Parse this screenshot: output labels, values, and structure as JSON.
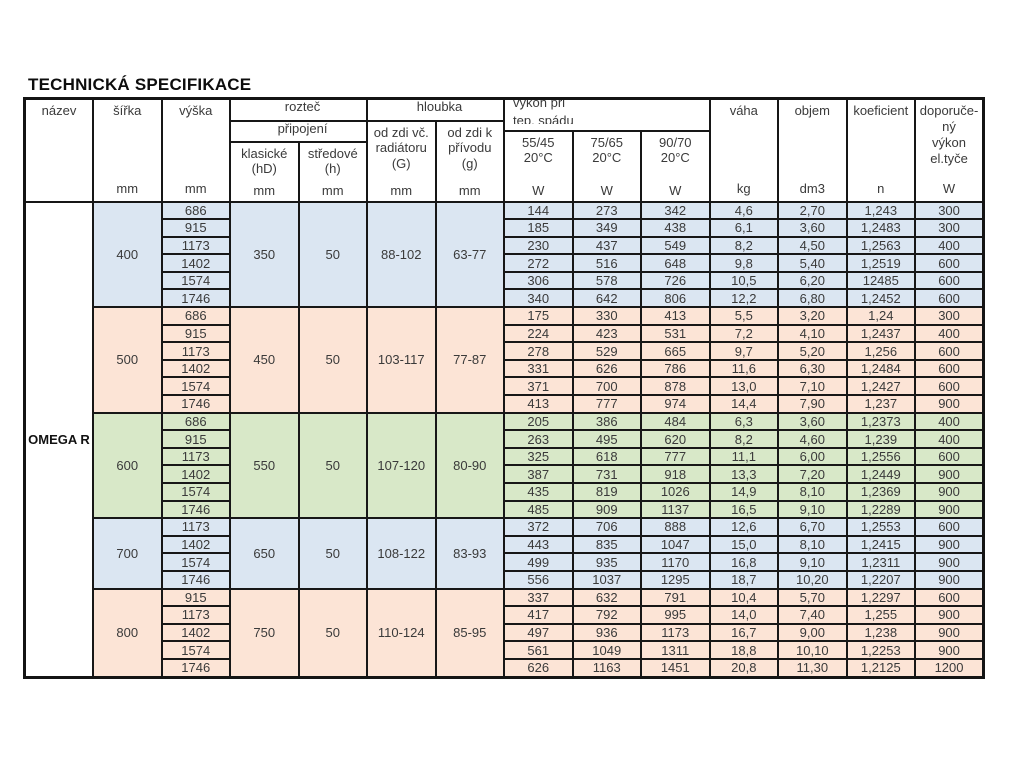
{
  "title": "TECHNICKÁ SPECIFIKACE",
  "product_name": "OMEGA R",
  "colors": {
    "group_blue": "#dbe6f2",
    "group_peach": "#fce4d6",
    "group_green": "#d8e8c8",
    "border": "#171717"
  },
  "header": {
    "nazev": "název",
    "sirka": "šířka",
    "vyska": "výška",
    "roztec": "rozteč",
    "pripojeni": "připojení",
    "klasicke": "klasické\n(hD)",
    "stredove": "středové\n(h)",
    "hloubka": "hloubka",
    "depth_wall": "od zdi vč.\nradiátoru\n(G)",
    "depth_supply": "od zdi k\npřívodu\n(g)",
    "vykon_line1": "výkon při",
    "vykon_line2": "tep. spádu",
    "temp_5545": "55/45\n20°C",
    "temp_7565": "75/65\n20°C",
    "temp_9070": "90/70\n20°C",
    "vaha": "váha",
    "objem": "objem",
    "koeficient": "koeficient",
    "doporuceny": "doporuče-\nný\nvýkon\nel.tyče",
    "unit_mm": "mm",
    "unit_w": "W",
    "unit_kg": "kg",
    "unit_dm3": "dm3",
    "unit_n": "n"
  },
  "groups": [
    {
      "color": "blue",
      "sirka": "400",
      "klasicke": "350",
      "stredove": "50",
      "depth_g": "88-102",
      "depth_p": "63-77",
      "rows": [
        {
          "vyska": "686",
          "p1": "144",
          "p2": "273",
          "p3": "342",
          "vaha": "4,6",
          "objem": "2,70",
          "koef": "1,243",
          "dop": "300"
        },
        {
          "vyska": "915",
          "p1": "185",
          "p2": "349",
          "p3": "438",
          "vaha": "6,1",
          "objem": "3,60",
          "koef": "1,2483",
          "dop": "300"
        },
        {
          "vyska": "1173",
          "p1": "230",
          "p2": "437",
          "p3": "549",
          "vaha": "8,2",
          "objem": "4,50",
          "koef": "1,2563",
          "dop": "400"
        },
        {
          "vyska": "1402",
          "p1": "272",
          "p2": "516",
          "p3": "648",
          "vaha": "9,8",
          "objem": "5,40",
          "koef": "1,2519",
          "dop": "600"
        },
        {
          "vyska": "1574",
          "p1": "306",
          "p2": "578",
          "p3": "726",
          "vaha": "10,5",
          "objem": "6,20",
          "koef": "12485",
          "dop": "600"
        },
        {
          "vyska": "1746",
          "p1": "340",
          "p2": "642",
          "p3": "806",
          "vaha": "12,2",
          "objem": "6,80",
          "koef": "1,2452",
          "dop": "600"
        }
      ]
    },
    {
      "color": "peach",
      "sirka": "500",
      "klasicke": "450",
      "stredove": "50",
      "depth_g": "103-117",
      "depth_p": "77-87",
      "rows": [
        {
          "vyska": "686",
          "p1": "175",
          "p2": "330",
          "p3": "413",
          "vaha": "5,5",
          "objem": "3,20",
          "koef": "1,24",
          "dop": "300"
        },
        {
          "vyska": "915",
          "p1": "224",
          "p2": "423",
          "p3": "531",
          "vaha": "7,2",
          "objem": "4,10",
          "koef": "1,2437",
          "dop": "400"
        },
        {
          "vyska": "1173",
          "p1": "278",
          "p2": "529",
          "p3": "665",
          "vaha": "9,7",
          "objem": "5,20",
          "koef": "1,256",
          "dop": "600"
        },
        {
          "vyska": "1402",
          "p1": "331",
          "p2": "626",
          "p3": "786",
          "vaha": "11,6",
          "objem": "6,30",
          "koef": "1,2484",
          "dop": "600"
        },
        {
          "vyska": "1574",
          "p1": "371",
          "p2": "700",
          "p3": "878",
          "vaha": "13,0",
          "objem": "7,10",
          "koef": "1,2427",
          "dop": "600"
        },
        {
          "vyska": "1746",
          "p1": "413",
          "p2": "777",
          "p3": "974",
          "vaha": "14,4",
          "objem": "7,90",
          "koef": "1,237",
          "dop": "900"
        }
      ]
    },
    {
      "color": "green",
      "sirka": "600",
      "klasicke": "550",
      "stredove": "50",
      "depth_g": "107-120",
      "depth_p": "80-90",
      "rows": [
        {
          "vyska": "686",
          "p1": "205",
          "p2": "386",
          "p3": "484",
          "vaha": "6,3",
          "objem": "3,60",
          "koef": "1,2373",
          "dop": "400"
        },
        {
          "vyska": "915",
          "p1": "263",
          "p2": "495",
          "p3": "620",
          "vaha": "8,2",
          "objem": "4,60",
          "koef": "1,239",
          "dop": "400"
        },
        {
          "vyska": "1173",
          "p1": "325",
          "p2": "618",
          "p3": "777",
          "vaha": "11,1",
          "objem": "6,00",
          "koef": "1,2556",
          "dop": "600"
        },
        {
          "vyska": "1402",
          "p1": "387",
          "p2": "731",
          "p3": "918",
          "vaha": "13,3",
          "objem": "7,20",
          "koef": "1,2449",
          "dop": "900"
        },
        {
          "vyska": "1574",
          "p1": "435",
          "p2": "819",
          "p3": "1026",
          "vaha": "14,9",
          "objem": "8,10",
          "koef": "1,2369",
          "dop": "900"
        },
        {
          "vyska": "1746",
          "p1": "485",
          "p2": "909",
          "p3": "1137",
          "vaha": "16,5",
          "objem": "9,10",
          "koef": "1,2289",
          "dop": "900"
        }
      ]
    },
    {
      "color": "blue",
      "sirka": "700",
      "klasicke": "650",
      "stredove": "50",
      "depth_g": "108-122",
      "depth_p": "83-93",
      "rows": [
        {
          "vyska": "1173",
          "p1": "372",
          "p2": "706",
          "p3": "888",
          "vaha": "12,6",
          "objem": "6,70",
          "koef": "1,2553",
          "dop": "600"
        },
        {
          "vyska": "1402",
          "p1": "443",
          "p2": "835",
          "p3": "1047",
          "vaha": "15,0",
          "objem": "8,10",
          "koef": "1,2415",
          "dop": "900"
        },
        {
          "vyska": "1574",
          "p1": "499",
          "p2": "935",
          "p3": "1170",
          "vaha": "16,8",
          "objem": "9,10",
          "koef": "1,2311",
          "dop": "900"
        },
        {
          "vyska": "1746",
          "p1": "556",
          "p2": "1037",
          "p3": "1295",
          "vaha": "18,7",
          "objem": "10,20",
          "koef": "1,2207",
          "dop": "900"
        }
      ]
    },
    {
      "color": "peach",
      "sirka": "800",
      "klasicke": "750",
      "stredove": "50",
      "depth_g": "110-124",
      "depth_p": "85-95",
      "rows": [
        {
          "vyska": "915",
          "p1": "337",
          "p2": "632",
          "p3": "791",
          "vaha": "10,4",
          "objem": "5,70",
          "koef": "1,2297",
          "dop": "600"
        },
        {
          "vyska": "1173",
          "p1": "417",
          "p2": "792",
          "p3": "995",
          "vaha": "14,0",
          "objem": "7,40",
          "koef": "1,255",
          "dop": "900"
        },
        {
          "vyska": "1402",
          "p1": "497",
          "p2": "936",
          "p3": "1173",
          "vaha": "16,7",
          "objem": "9,00",
          "koef": "1,238",
          "dop": "900"
        },
        {
          "vyska": "1574",
          "p1": "561",
          "p2": "1049",
          "p3": "1311",
          "vaha": "18,8",
          "objem": "10,10",
          "koef": "1,2253",
          "dop": "900"
        },
        {
          "vyska": "1746",
          "p1": "626",
          "p2": "1163",
          "p3": "1451",
          "vaha": "20,8",
          "objem": "11,30",
          "koef": "1,2125",
          "dop": "1200"
        }
      ]
    }
  ]
}
